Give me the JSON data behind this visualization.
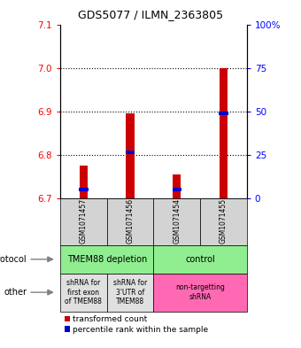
{
  "title": "GDS5077 / ILMN_2363805",
  "samples": [
    "GSM1071457",
    "GSM1071456",
    "GSM1071454",
    "GSM1071455"
  ],
  "red_values": [
    6.775,
    6.895,
    6.755,
    7.0
  ],
  "blue_values": [
    6.72,
    6.805,
    6.72,
    6.895
  ],
  "y_min": 6.7,
  "y_max": 7.1,
  "y_ticks_left": [
    6.7,
    6.8,
    6.9,
    7.0,
    7.1
  ],
  "y_ticks_right": [
    0,
    25,
    50,
    75,
    100
  ],
  "y_ticks_right_labels": [
    "0",
    "25",
    "50",
    "75",
    "100%"
  ],
  "dotted_lines": [
    6.8,
    6.9,
    7.0
  ],
  "bar_bottom": 6.7,
  "protocol_groups": [
    {
      "label": "TMEM88 depletion",
      "start": 0,
      "end": 2,
      "color": "#90EE90"
    },
    {
      "label": "control",
      "start": 2,
      "end": 4,
      "color": "#90EE90"
    }
  ],
  "other_groups": [
    {
      "label": "shRNA for\nfirst exon\nof TMEM88",
      "start": 0,
      "end": 1,
      "color": "#E0E0E0"
    },
    {
      "label": "shRNA for\n3'UTR of\nTMEM88",
      "start": 1,
      "end": 2,
      "color": "#E0E0E0"
    },
    {
      "label": "non-targetting\nshRNA",
      "start": 2,
      "end": 4,
      "color": "#FF69B4"
    }
  ],
  "sample_box_color": "#D3D3D3",
  "red_color": "#CC0000",
  "blue_color": "#0000CC",
  "bar_width": 0.18,
  "blue_marker_size": 0.008
}
